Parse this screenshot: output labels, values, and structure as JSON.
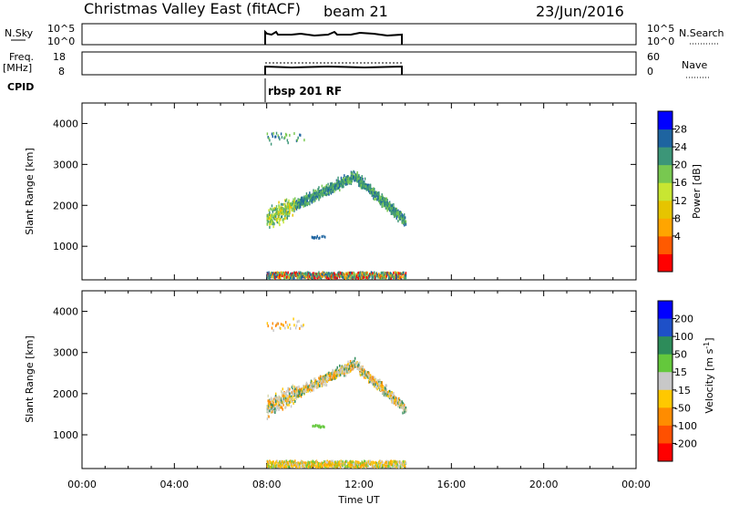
{
  "header": {
    "station": "Christmas Valley East (fitACF)",
    "beam": "beam 21",
    "date": "23/Jun/2016"
  },
  "panels": {
    "nsky": {
      "label": "N.Sky",
      "ticks": [
        "10^5",
        "10^0"
      ],
      "right_ticks": [
        "10^5",
        "10^0"
      ],
      "right_label": "N.Search"
    },
    "freq": {
      "label_1": "Freq.",
      "label_2": "[MHz]",
      "ticks": [
        "18",
        "8"
      ],
      "right_ticks": [
        "60",
        "0"
      ],
      "right_label": "Nave"
    },
    "cpid": {
      "label": "CPID",
      "value": "rbsp 201 RF"
    }
  },
  "chart_data": [
    {
      "type": "heatmap",
      "parameter": "Power",
      "ylabel": "Slant Range [km]",
      "xlabel": "",
      "colorbar_label": "Power [dB]",
      "colorbar_ticks": [
        "28",
        "24",
        "20",
        "16",
        "12",
        "8",
        "4"
      ],
      "colorbar_colors": [
        "#ff0000",
        "#ff5a00",
        "#ffa500",
        "#e6c400",
        "#c8e632",
        "#78c850",
        "#3c9678",
        "#1e64a0",
        "#0000ff"
      ],
      "ylim": [
        180,
        4500
      ],
      "ytick_values": [
        1000,
        2000,
        3000,
        4000
      ],
      "xlim": [
        0,
        24
      ],
      "data_hours": [
        8.0,
        14.0
      ]
    },
    {
      "type": "heatmap",
      "parameter": "Velocity",
      "ylabel": "Slant Range [km]",
      "xlabel": "Time UT",
      "colorbar_label": "Velocity [m s",
      "colorbar_label_sup": "-1",
      "colorbar_label_end": "]",
      "colorbar_ticks": [
        "200",
        "100",
        "50",
        "15",
        "-15",
        "-50",
        "-100",
        "-200"
      ],
      "colorbar_colors": [
        "#0000ff",
        "#1e50c8",
        "#2d8c5a",
        "#64c83c",
        "#c8c8c8",
        "#ffc800",
        "#ff8c00",
        "#ff5000",
        "#ff0000"
      ],
      "ylim": [
        180,
        4500
      ],
      "ytick_values": [
        1000,
        2000,
        3000,
        4000
      ],
      "xlim": [
        0,
        24
      ],
      "xtick_labels": [
        "00:00",
        "04:00",
        "08:00",
        "12:00",
        "16:00",
        "20:00",
        "00:00"
      ],
      "data_hours": [
        8.0,
        14.0
      ]
    }
  ]
}
